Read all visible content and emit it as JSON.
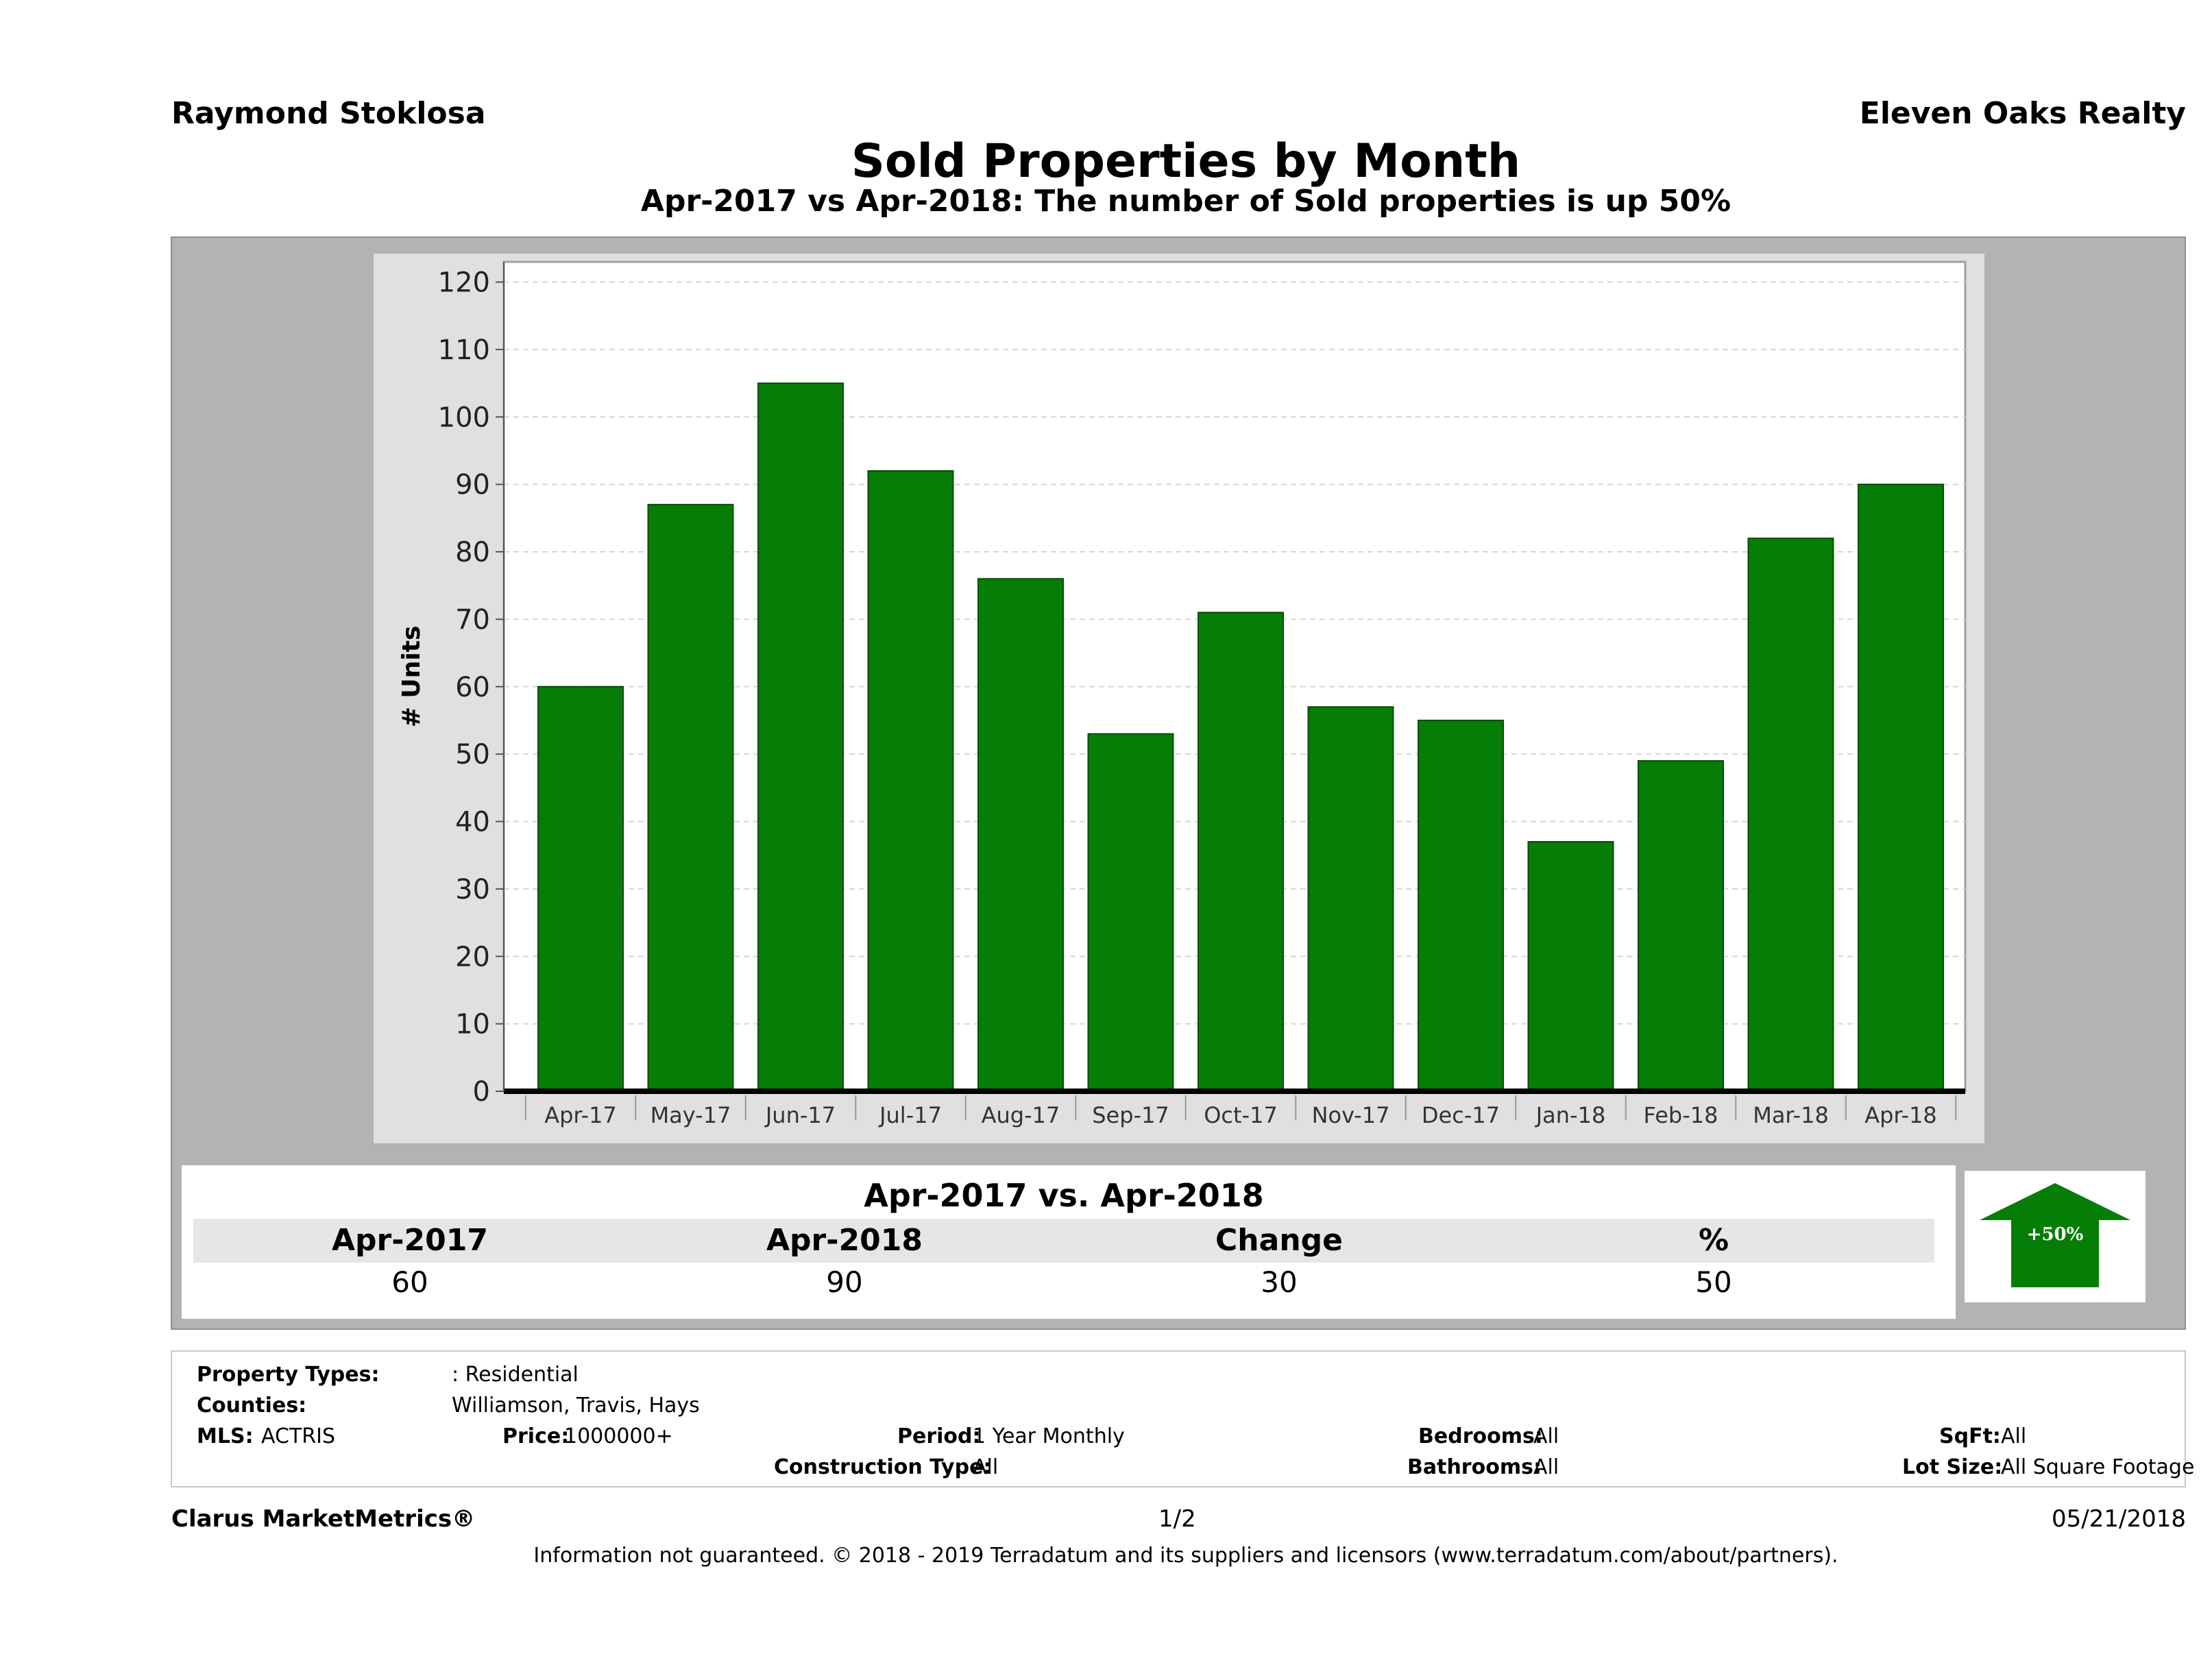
{
  "header": {
    "agent": "Raymond Stoklosa",
    "brokerage": "Eleven Oaks Realty"
  },
  "title": "Sold Properties by Month",
  "subtitle": "Apr-2017 vs Apr-2018: The number of Sold  properties is up 50%",
  "chart_data": {
    "type": "bar",
    "categories": [
      "Apr-17",
      "May-17",
      "Jun-17",
      "Jul-17",
      "Aug-17",
      "Sep-17",
      "Oct-17",
      "Nov-17",
      "Dec-17",
      "Jan-18",
      "Feb-18",
      "Mar-18",
      "Apr-18"
    ],
    "values": [
      60,
      87,
      105,
      92,
      76,
      53,
      71,
      57,
      55,
      37,
      49,
      82,
      90
    ],
    "ylabel": "# Units",
    "ylim": [
      0,
      120
    ],
    "yticks": [
      0,
      10,
      20,
      30,
      40,
      50,
      60,
      70,
      80,
      90,
      100,
      110,
      120
    ],
    "grid": true,
    "bar_color": "#067d06"
  },
  "summary": {
    "title": "Apr-2017 vs. Apr-2018",
    "headers": [
      "Apr-2017",
      "Apr-2018",
      "Change",
      "%"
    ],
    "values": [
      "60",
      "90",
      "30",
      "50"
    ],
    "badge": "+50%",
    "badge_color": "#067d06"
  },
  "filters": {
    "property_types_label": "Property Types:",
    "property_types_value": ": Residential",
    "counties_label": "Counties:",
    "counties_value": "Williamson, Travis, Hays",
    "mls_label": "MLS:",
    "mls_value": "ACTRIS",
    "price_label": "Price:",
    "price_value": "1000000+",
    "period_label": "Period:",
    "period_value": "1 Year Monthly",
    "construction_label": "Construction Type:",
    "construction_value": "All",
    "bedrooms_label": "Bedrooms:",
    "bedrooms_value": "All",
    "bathrooms_label": "Bathrooms:",
    "bathrooms_value": "All",
    "sqft_label": "SqFt:",
    "sqft_value": "All",
    "lot_label": "Lot Size:",
    "lot_value": "All Square Footage"
  },
  "footer": {
    "brand": "Clarus MarketMetrics®",
    "page": "1/2",
    "date": "05/21/2018",
    "disclaimer": "Information not guaranteed. © 2018 - 2019 Terradatum and its suppliers and licensors (www.terradatum.com/about/partners)."
  }
}
